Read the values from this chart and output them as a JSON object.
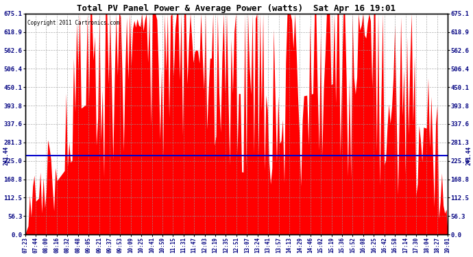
{
  "title": "Total PV Panel Power & Average Power (watts)  Sat Apr 16 19:01",
  "copyright": "Copyright 2011 Cartronics.com",
  "average_power": 241.44,
  "ymax": 675.1,
  "yticks": [
    0.0,
    56.3,
    112.5,
    168.8,
    225.0,
    281.3,
    337.6,
    393.8,
    450.1,
    506.4,
    562.6,
    618.9,
    675.1
  ],
  "fill_color": "#FF0000",
  "line_color": "#0000CC",
  "background_color": "#FFFFFF",
  "grid_color": "#999999",
  "xtick_labels": [
    "07:23",
    "07:44",
    "08:00",
    "08:16",
    "08:32",
    "08:48",
    "09:05",
    "09:21",
    "09:37",
    "09:53",
    "10:09",
    "10:25",
    "10:41",
    "10:59",
    "11:15",
    "11:31",
    "11:47",
    "12:03",
    "12:19",
    "12:35",
    "12:51",
    "13:07",
    "13:24",
    "13:41",
    "13:57",
    "14:13",
    "14:29",
    "14:46",
    "15:02",
    "15:19",
    "15:36",
    "15:52",
    "16:08",
    "16:25",
    "16:42",
    "16:58",
    "17:14",
    "17:30",
    "18:04",
    "18:27",
    "19:01"
  ],
  "figwidth": 6.9,
  "figheight": 3.75,
  "dpi": 100
}
